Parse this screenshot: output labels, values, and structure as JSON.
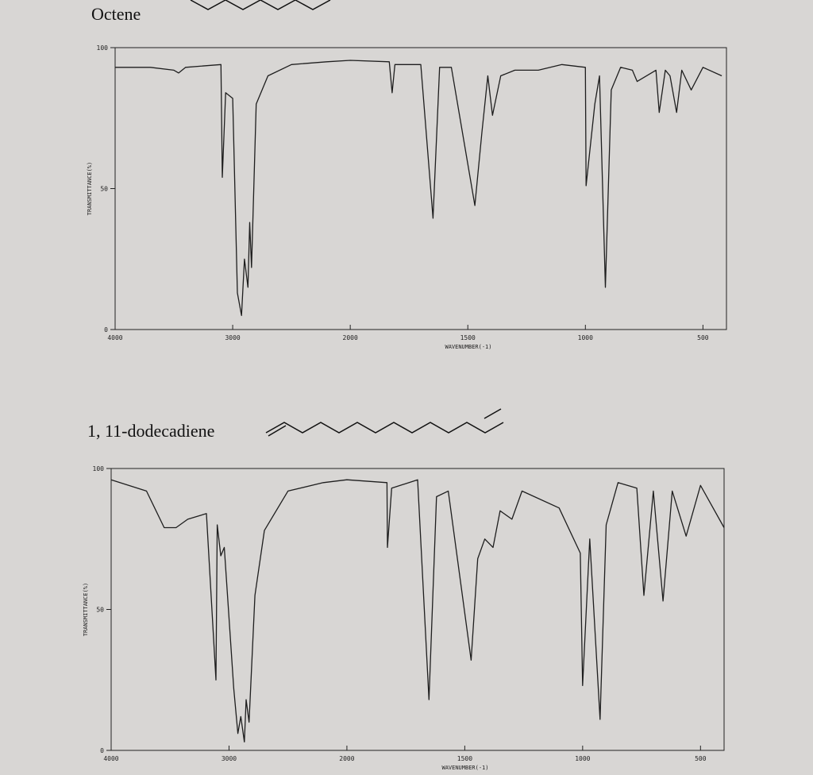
{
  "chart_data": [
    {
      "type": "line",
      "title": "Octene",
      "xlabel": "WAVENUMBER(-1)",
      "ylabel": "TRANSMITTANCE(%)",
      "xlim": [
        4000,
        400
      ],
      "x_scale_break": 2000,
      "ylim": [
        0,
        100
      ],
      "xticks": [
        4000,
        3000,
        2000,
        1500,
        1000,
        500
      ],
      "yticks": [
        0,
        50,
        100
      ],
      "grid": false,
      "color": "#1e1e1e",
      "x": [
        4000,
        3700,
        3500,
        3460,
        3400,
        3100,
        3088,
        3060,
        3000,
        2960,
        2925,
        2900,
        2870,
        2855,
        2840,
        2800,
        2700,
        2500,
        2200,
        2000,
        1834,
        1822,
        1810,
        1700,
        1648,
        1620,
        1570,
        1470,
        1440,
        1415,
        1395,
        1360,
        1300,
        1200,
        1100,
        1000,
        997,
        960,
        940,
        915,
        890,
        850,
        800,
        780,
        700,
        686,
        660,
        640,
        612,
        590,
        550,
        500,
        420
      ],
      "values": [
        93,
        93,
        92,
        91,
        93,
        94,
        54,
        84,
        82,
        13,
        5,
        25,
        15,
        38,
        22,
        80,
        90,
        94,
        95,
        95.5,
        95,
        84,
        94,
        94,
        39.5,
        93,
        93,
        44,
        70,
        90,
        76,
        90,
        92,
        92,
        94,
        93,
        51,
        80,
        90,
        15,
        85,
        93,
        92,
        88,
        92,
        77,
        92,
        90,
        77,
        92,
        85,
        93,
        90
      ]
    },
    {
      "type": "line",
      "title": "1, 11-dodecadiene",
      "xlabel": "WAVENUMBER(-1)",
      "ylabel": "TRANSMITTANCE(%)",
      "xlim": [
        4000,
        400
      ],
      "x_scale_break": 2000,
      "ylim": [
        0,
        100
      ],
      "xticks": [
        4000,
        3000,
        2000,
        1500,
        1000,
        500
      ],
      "yticks": [
        0,
        50,
        100
      ],
      "grid": false,
      "color": "#1e1e1e",
      "x": [
        4000,
        3700,
        3550,
        3450,
        3350,
        3192,
        3111,
        3100,
        3070,
        3040,
        2960,
        2925,
        2900,
        2870,
        2855,
        2830,
        2780,
        2700,
        2500,
        2200,
        2000,
        1830,
        1828,
        1810,
        1700,
        1652,
        1620,
        1570,
        1473,
        1445,
        1415,
        1380,
        1350,
        1300,
        1257,
        1100,
        1010,
        1000,
        970,
        926,
        900,
        850,
        770,
        740,
        700,
        659,
        620,
        561,
        500,
        400
      ],
      "values": [
        96,
        92,
        79,
        79,
        82,
        84,
        25,
        80,
        69,
        72,
        22,
        6,
        12,
        3,
        18,
        10,
        55,
        78,
        92,
        95,
        96,
        95,
        72,
        93,
        96,
        18,
        90,
        92,
        32,
        68,
        75,
        72,
        85,
        82,
        92,
        86,
        70,
        23,
        75,
        11,
        80,
        95,
        93,
        55,
        92,
        53,
        92,
        76,
        94,
        79
      ]
    }
  ]
}
